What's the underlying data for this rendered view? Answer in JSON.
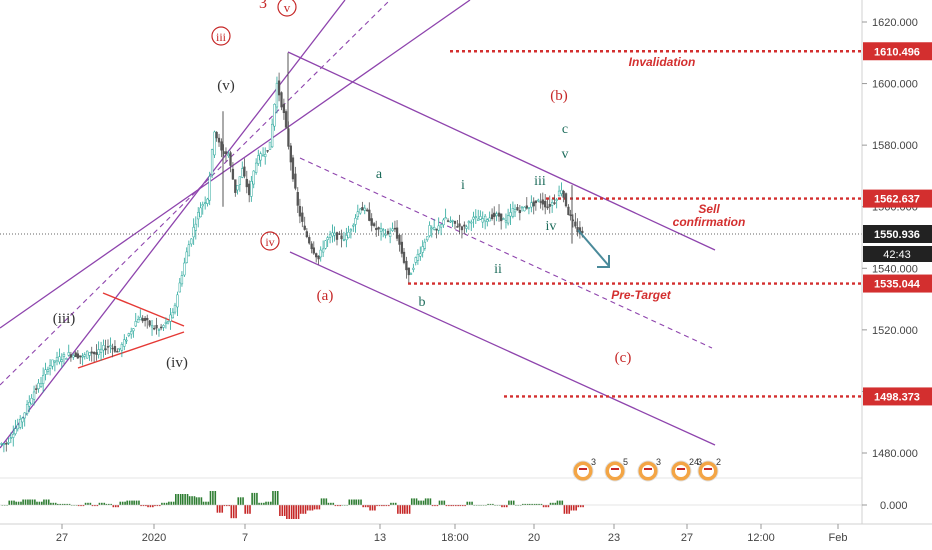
{
  "chart_data": {
    "type": "line",
    "series": [
      {
        "x": [
          0,
          7,
          14,
          21,
          28,
          35,
          42,
          49,
          56,
          63,
          70,
          77,
          84,
          91,
          98,
          105,
          112,
          119,
          126,
          133,
          140,
          147,
          154,
          161,
          168,
          175,
          182,
          189,
          196,
          203,
          210,
          217,
          224,
          231,
          238,
          245,
          252,
          259,
          266,
          273,
          280,
          287,
          294,
          301,
          308,
          315,
          322,
          329,
          336,
          343,
          350,
          357,
          364,
          371,
          378,
          385,
          392,
          399,
          406,
          413,
          420,
          427,
          434,
          441,
          448,
          455,
          462,
          469,
          476,
          483,
          490,
          497,
          504,
          511,
          518,
          525,
          532,
          539,
          546,
          553,
          560,
          567,
          574,
          581
        ],
        "values": [
          1483,
          1487,
          1490,
          1495,
          1500,
          1503,
          1508,
          1510,
          1511,
          1512,
          1512,
          1511,
          1513,
          1512,
          1514,
          1515,
          1513,
          1516,
          1520,
          1524,
          1523,
          1521,
          1520,
          1522,
          1525,
          1535,
          1545,
          1553,
          1560,
          1563,
          1585,
          1578,
          1577,
          1565,
          1572,
          1564,
          1575,
          1577,
          1580,
          1600,
          1590,
          1575,
          1560,
          1552,
          1547,
          1543,
          1549,
          1551,
          1550,
          1550,
          1555,
          1560,
          1558,
          1553,
          1552,
          1551,
          1553,
          1545,
          1537,
          1543,
          1547,
          1553,
          1552,
          1556,
          1555,
          1554,
          1553,
          1556,
          1556,
          1556,
          1557,
          1557,
          1555,
          1559,
          1559,
          1560,
          1561,
          1562,
          1560,
          1562,
          1566,
          1558,
          1553,
          1551
        ]
      }
    ],
    "ylim": [
      1470,
      1627
    ],
    "y_ticks": [
      "1620.000",
      "1600.000",
      "1580.000",
      "1560.000",
      "1540.000",
      "1520.000",
      "1500.000",
      "1480.000"
    ],
    "oscillator_tick": "0.000",
    "x_ticks": [
      "27",
      "2020",
      "7",
      "13",
      "18:00",
      "20",
      "23",
      "27",
      "12:00",
      "Feb"
    ],
    "levels": [
      {
        "price": "1610.496",
        "label": "Invalidation",
        "color": "#d32f2f"
      },
      {
        "price": "1562.637",
        "label_line1": "Sell",
        "label_line2": "confirmation",
        "color": "#d32f2f"
      },
      {
        "price": "1535.044",
        "label": "Pre-Target",
        "color": "#d32f2f"
      },
      {
        "price": "1498.373",
        "label": "",
        "color": "#d32f2f"
      }
    ],
    "current_price": "1550.936",
    "countdown": "42:43",
    "wave_labels": {
      "big_3": "3",
      "v_circle": "v",
      "iii_circle": "iii",
      "iv_circle": "iv",
      "v_paren": "(v)",
      "iii_paren": "(iii)",
      "iv_paren": "(iv)",
      "a_paren": "(a)",
      "b_paren": "(b)",
      "c_paren": "(c)",
      "a": "a",
      "b": "b",
      "c": "c",
      "i": "i",
      "ii": "ii",
      "iii": "iii",
      "iv": "iv",
      "v": "v"
    },
    "colors": {
      "candle_up": "#26a69a",
      "candle_down": "#555555",
      "channel": "#8e44ad",
      "level": "#d32f2f",
      "wave_green": "#1b6b5a",
      "wave_dark": "#333333",
      "wave_red": "#c62828",
      "arrow": "#4a8a9a"
    },
    "event_badges": [
      "3",
      "5",
      "3",
      "24",
      "3",
      "2"
    ]
  }
}
